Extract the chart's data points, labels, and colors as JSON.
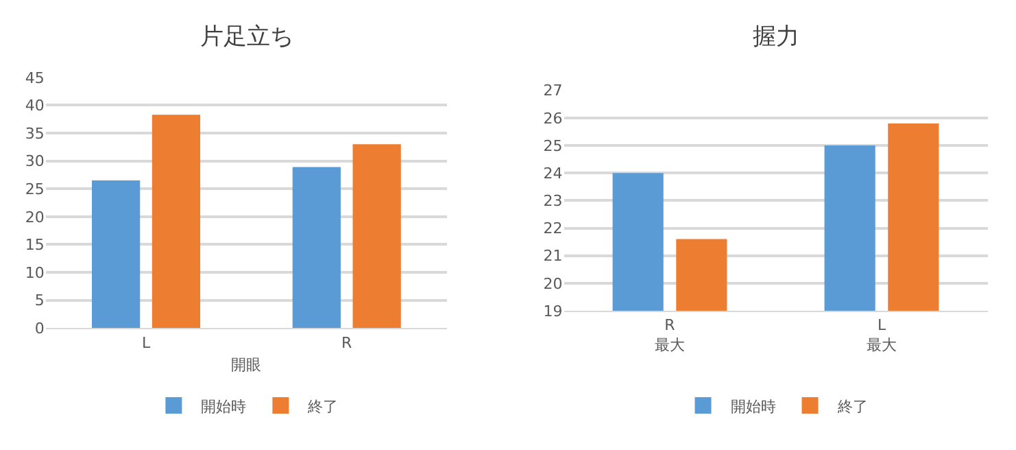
{
  "chart_data": [
    {
      "type": "bar",
      "title": "片足立ち",
      "xlabel": "開眼",
      "categories": [
        "L",
        "R"
      ],
      "series": [
        {
          "name": "開始時",
          "color": "#5b9bd5",
          "values": [
            26.5,
            28.9
          ]
        },
        {
          "name": "終了",
          "color": "#ed7d31",
          "values": [
            38.3,
            33.0
          ]
        }
      ],
      "ylim": [
        0,
        45
      ],
      "yticks": [
        0,
        5,
        10,
        15,
        20,
        25,
        30,
        35,
        40,
        45
      ],
      "grid": "y",
      "legend": "bottom"
    },
    {
      "type": "bar",
      "title": "握力",
      "categories": [
        "R\n最大",
        "L\n最大"
      ],
      "series": [
        {
          "name": "開始時",
          "color": "#5b9bd5",
          "values": [
            24.0,
            25.0
          ]
        },
        {
          "name": "終了",
          "color": "#ed7d31",
          "values": [
            21.6,
            25.8
          ]
        }
      ],
      "ylim": [
        19,
        27
      ],
      "yticks": [
        19,
        20,
        21,
        22,
        23,
        24,
        25,
        26,
        27
      ],
      "grid": "y",
      "legend": "bottom"
    }
  ]
}
